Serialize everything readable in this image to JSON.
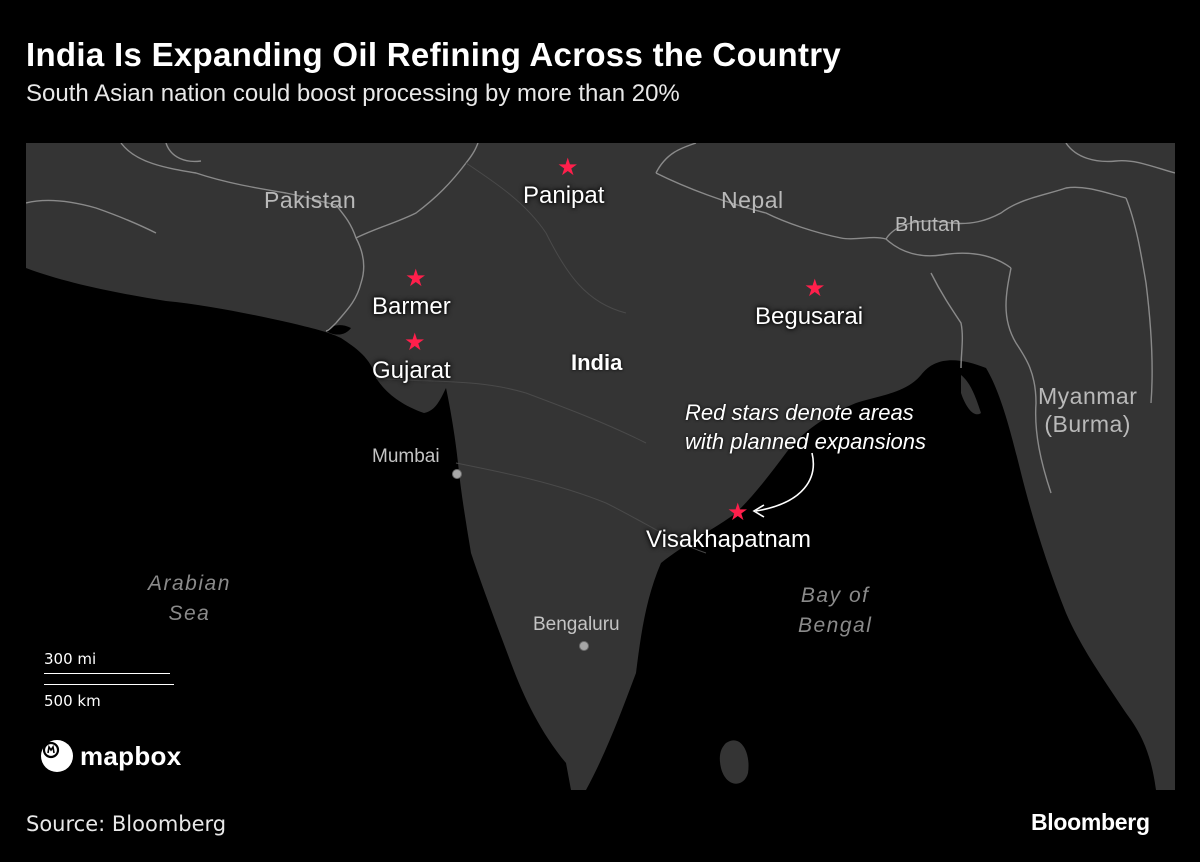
{
  "header": {
    "title": "India Is Expanding Oil Refining Across the Country",
    "subtitle": "South Asian nation could boost processing by more than 20%"
  },
  "map": {
    "countries": {
      "pakistan": "Pakistan",
      "nepal": "Nepal",
      "bhutan": "Bhutan",
      "myanmar": "Myanmar\n(Burma)",
      "india": "India"
    },
    "seas": {
      "arabian_sea": "Arabian\nSea",
      "bay_of_bengal": "Bay of\nBengal"
    },
    "reference_cities": {
      "mumbai": "Mumbai",
      "bengaluru": "Bengaluru"
    },
    "refinery_sites": [
      {
        "name": "Panipat"
      },
      {
        "name": "Barmer"
      },
      {
        "name": "Gujarat"
      },
      {
        "name": "Begusarai"
      },
      {
        "name": "Visakhapatnam"
      }
    ],
    "star_glyph": "★",
    "star_color": "#ff1f4b",
    "annotation": "Red stars denote areas\nwith planned expansions",
    "scale": {
      "miles": "300 mi",
      "kilometers": "500 km"
    },
    "attribution": "mapbox",
    "colors": {
      "land": "#343434",
      "water": "#000000",
      "border": "#8a8a8a"
    }
  },
  "footer": {
    "source": "Source: Bloomberg",
    "brand": "Bloomberg"
  }
}
